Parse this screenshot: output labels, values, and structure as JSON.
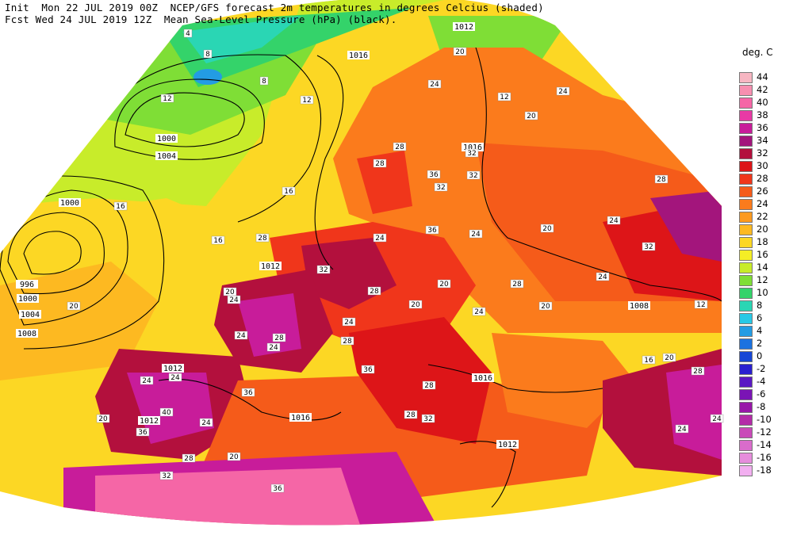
{
  "header": {
    "line1": "Init  Mon 22 JUL 2019 00Z  NCEP/GFS forecast 2m temperatures in degrees Celcius (shaded)",
    "line2": "Fcst Wed 24 JUL 2019 12Z  Mean Sea-Level Pressure (hPa) (black)."
  },
  "legend": {
    "title": "deg. C",
    "items": [
      {
        "label": "44",
        "color": "#f7b6c2"
      },
      {
        "label": "42",
        "color": "#f78fb0"
      },
      {
        "label": "40",
        "color": "#f566a6"
      },
      {
        "label": "38",
        "color": "#e83aa5"
      },
      {
        "label": "36",
        "color": "#c81c9a"
      },
      {
        "label": "34",
        "color": "#a3157c"
      },
      {
        "label": "32",
        "color": "#b3103d"
      },
      {
        "label": "30",
        "color": "#dd1518"
      },
      {
        "label": "28",
        "color": "#f0361b"
      },
      {
        "label": "26",
        "color": "#f55b1a"
      },
      {
        "label": "24",
        "color": "#fb7b1c"
      },
      {
        "label": "22",
        "color": "#fd9a1f"
      },
      {
        "label": "20",
        "color": "#fdb921"
      },
      {
        "label": "18",
        "color": "#fcd724"
      },
      {
        "label": "16",
        "color": "#f4ee26"
      },
      {
        "label": "14",
        "color": "#c8ec2a"
      },
      {
        "label": "12",
        "color": "#7fde36"
      },
      {
        "label": "10",
        "color": "#34d36a"
      },
      {
        "label": "8",
        "color": "#2ad6b4"
      },
      {
        "label": "6",
        "color": "#27c9e6"
      },
      {
        "label": "4",
        "color": "#239ce4"
      },
      {
        "label": "2",
        "color": "#1b72e0"
      },
      {
        "label": "0",
        "color": "#1646d6"
      },
      {
        "label": "-2",
        "color": "#2a1fd0"
      },
      {
        "label": "-4",
        "color": "#5a18c4"
      },
      {
        "label": "-6",
        "color": "#7a14b5"
      },
      {
        "label": "-8",
        "color": "#9816a8"
      },
      {
        "label": "-10",
        "color": "#b42aa8"
      },
      {
        "label": "-12",
        "color": "#c949b8"
      },
      {
        "label": "-14",
        "color": "#d96ccb"
      },
      {
        "label": "-16",
        "color": "#e68ddc"
      },
      {
        "label": "-18",
        "color": "#f2aff0"
      }
    ]
  },
  "isobar_labels": [
    "1012",
    "1016",
    "1000",
    "1004",
    "1000",
    "996",
    "1000",
    "1004",
    "1008",
    "1012",
    "1012",
    "1012",
    "1016",
    "1016",
    "1016",
    "1008",
    "1016",
    "1012"
  ],
  "temperature_labels": [
    "4",
    "8",
    "12",
    "8",
    "16",
    "16",
    "20",
    "16",
    "12",
    "20",
    "12",
    "24",
    "24",
    "20",
    "28",
    "32",
    "32",
    "36",
    "28",
    "32",
    "20",
    "24",
    "28",
    "32",
    "28",
    "36",
    "24",
    "24",
    "20",
    "20",
    "24",
    "28",
    "24",
    "20",
    "24",
    "28",
    "24",
    "24",
    "24",
    "28",
    "32",
    "28",
    "20",
    "20",
    "24",
    "36",
    "40",
    "36",
    "24",
    "24",
    "20",
    "28",
    "28",
    "32",
    "36",
    "36",
    "32",
    "28",
    "20",
    "16",
    "12",
    "28",
    "24",
    "24"
  ]
}
